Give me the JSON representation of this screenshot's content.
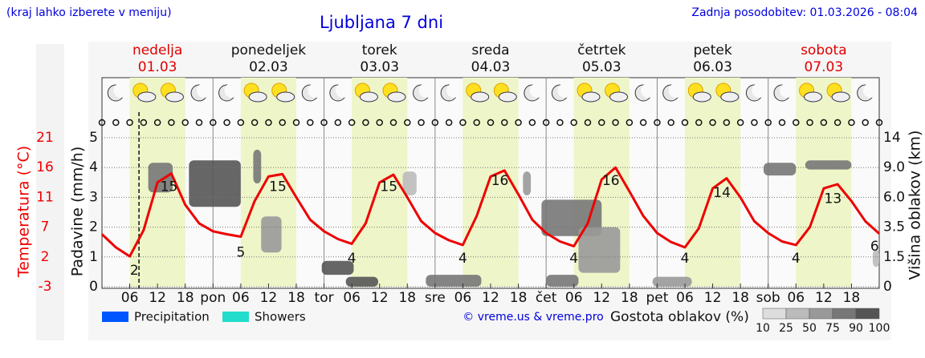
{
  "chart_data": {
    "type": "meteogram",
    "note_left": "(kraj lahko izberete v meniju)",
    "title": "Ljubljana 7 dni",
    "updated": "Zadnja posodobitev: 01.03.2026 - 08:04",
    "credit": "© vreme.us & vreme.pro",
    "ylabel": "Padavine (mm/h)",
    "y2label": "Višina oblakov (km)",
    "xlim": [
      0,
      168
    ],
    "ylim": [
      0,
      5
    ],
    "yticks": [
      0,
      1,
      2,
      3,
      4,
      5
    ],
    "y2ticks": [
      0,
      1.5,
      3.5,
      {
        "value": 6,
        "label": "6.0"
      },
      {
        "value": 9,
        "label": "9.0"
      },
      14
    ],
    "grid": true,
    "now": 8,
    "xticks": [
      {
        "value": 6,
        "label": "06"
      },
      {
        "value": 12,
        "label": "12"
      },
      {
        "value": 18,
        "label": "18"
      },
      {
        "value": 24,
        "label": "pon"
      },
      {
        "value": 30,
        "label": "06"
      },
      {
        "value": 36,
        "label": "12"
      },
      {
        "value": 42,
        "label": "18"
      },
      {
        "value": 48,
        "label": "tor"
      },
      {
        "value": 54,
        "label": "06"
      },
      {
        "value": 60,
        "label": "12"
      },
      {
        "value": 66,
        "label": "18"
      },
      {
        "value": 72,
        "label": "sre"
      },
      {
        "value": 78,
        "label": "06"
      },
      {
        "value": 84,
        "label": "12"
      },
      {
        "value": 90,
        "label": "18"
      },
      {
        "value": 96,
        "label": "čet"
      },
      {
        "value": 102,
        "label": "06"
      },
      {
        "value": 108,
        "label": "12"
      },
      {
        "value": 114,
        "label": "18"
      },
      {
        "value": 120,
        "label": "pet"
      },
      {
        "value": 126,
        "label": "06"
      },
      {
        "value": 132,
        "label": "12"
      },
      {
        "value": 138,
        "label": "18"
      },
      {
        "value": 144,
        "label": "sob"
      },
      {
        "value": 150,
        "label": "06"
      },
      {
        "value": 156,
        "label": "12"
      },
      {
        "value": 162,
        "label": "18"
      }
    ],
    "days": [
      {
        "name": "nedelja",
        "date": "01.03",
        "color": "#e00000"
      },
      {
        "name": "ponedeljek",
        "date": "02.03",
        "color": "#111111"
      },
      {
        "name": "torek",
        "date": "03.03",
        "color": "#111111"
      },
      {
        "name": "sreda",
        "date": "04.03",
        "color": "#111111"
      },
      {
        "name": "četrtek",
        "date": "05.03",
        "color": "#111111"
      },
      {
        "name": "petek",
        "date": "06.03",
        "color": "#111111"
      },
      {
        "name": "sobota",
        "date": "07.03",
        "color": "#e00000"
      }
    ],
    "temperature": {
      "label": "Temperatura (°C)",
      "color": "#ee0000",
      "ticks": [
        -3,
        2,
        7,
        11,
        16,
        21
      ],
      "x": [
        0,
        3,
        6,
        9,
        12,
        15,
        18,
        21,
        24,
        27,
        30,
        33,
        36,
        39,
        42,
        45,
        48,
        51,
        54,
        57,
        60,
        63,
        66,
        69,
        72,
        75,
        78,
        81,
        84,
        87,
        90,
        93,
        96,
        99,
        102,
        105,
        108,
        111,
        114,
        117,
        120,
        123,
        126,
        129,
        132,
        135,
        138,
        141,
        144,
        147,
        150,
        153,
        156,
        159,
        162,
        165,
        168
      ],
      "values": [
        5.8,
        3.6,
        2.1,
        6.5,
        13.5,
        15.0,
        10.0,
        7.5,
        6.3,
        5.8,
        5.4,
        10.5,
        14.5,
        14.9,
        11.0,
        8.0,
        6.3,
        5.0,
        4.2,
        7.5,
        13.5,
        14.8,
        11.0,
        7.8,
        6.0,
        4.8,
        4.0,
        8.5,
        14.5,
        15.5,
        11.5,
        8.0,
        6.0,
        4.6,
        3.8,
        7.5,
        14.0,
        16.0,
        12.0,
        8.5,
        6.0,
        4.5,
        3.6,
        6.8,
        12.5,
        14.2,
        11.0,
        7.8,
        6.0,
        4.6,
        4.0,
        7.0,
        12.5,
        13.2,
        10.5,
        7.8,
        5.9
      ],
      "extremes": [
        {
          "x": 7,
          "value": 2
        },
        {
          "x": 14.5,
          "value": 15
        },
        {
          "x": 30,
          "value": 5
        },
        {
          "x": 38,
          "value": 15
        },
        {
          "x": 54,
          "value": 4
        },
        {
          "x": 62,
          "value": 15
        },
        {
          "x": 78,
          "value": 4
        },
        {
          "x": 86,
          "value": 16
        },
        {
          "x": 102,
          "value": 4
        },
        {
          "x": 110,
          "value": 16
        },
        {
          "x": 126,
          "value": 4
        },
        {
          "x": 134,
          "value": 14
        },
        {
          "x": 150,
          "value": 4
        },
        {
          "x": 158,
          "value": 13
        },
        {
          "x": 167,
          "value": 6
        }
      ]
    },
    "clouds": [
      {
        "x0": 10,
        "x1": 15.3,
        "h0": 6.5,
        "h1": 9.8,
        "density": 75
      },
      {
        "x0": 18.8,
        "x1": 30,
        "h0": 5.2,
        "h1": 10.2,
        "density": 90
      },
      {
        "x0": 32.7,
        "x1": 34.4,
        "h0": 7.4,
        "h1": 12,
        "density": 75
      },
      {
        "x0": 34.4,
        "x1": 38.8,
        "h0": 1.8,
        "h1": 4.4,
        "density": 50
      },
      {
        "x0": 47.5,
        "x1": 54.4,
        "h0": 0.6,
        "h1": 1.3,
        "density": 90
      },
      {
        "x0": 52.7,
        "x1": 59.7,
        "h0": 0,
        "h1": 0.5,
        "density": 90
      },
      {
        "x0": 65,
        "x1": 68,
        "h0": 6.2,
        "h1": 8.6,
        "density": 25
      },
      {
        "x0": 70,
        "x1": 82,
        "h0": 0,
        "h1": 0.6,
        "density": 75
      },
      {
        "x0": 91,
        "x1": 92.7,
        "h0": 6.2,
        "h1": 8.6,
        "density": 50
      },
      {
        "x0": 95,
        "x1": 108,
        "h0": 2.9,
        "h1": 5.8,
        "density": 75
      },
      {
        "x0": 103,
        "x1": 112,
        "h0": 0.7,
        "h1": 3.5,
        "density": 50
      },
      {
        "x0": 96,
        "x1": 103,
        "h0": 0,
        "h1": 0.6,
        "density": 75
      },
      {
        "x0": 119,
        "x1": 127.5,
        "h0": 0,
        "h1": 0.5,
        "density": 50
      },
      {
        "x0": 143,
        "x1": 150,
        "h0": 8.2,
        "h1": 9.8,
        "density": 75
      },
      {
        "x0": 152,
        "x1": 162,
        "h0": 8.8,
        "h1": 10.2,
        "density": 75
      },
      {
        "x0": 166.6,
        "x1": 168,
        "h0": 1,
        "h1": 2,
        "density": 25
      }
    ],
    "series": [
      {
        "name": "Precipitation",
        "color": "#0055ff"
      },
      {
        "name": "Showers",
        "color": "#22ddcc"
      }
    ],
    "density_scale": {
      "label": "Gostota oblakov (%)",
      "ticks": [
        10,
        25,
        50,
        75,
        90,
        100
      ],
      "colors": [
        "#dddddd",
        "#bbbbbb",
        "#999999",
        "#777777",
        "#555555"
      ]
    }
  }
}
